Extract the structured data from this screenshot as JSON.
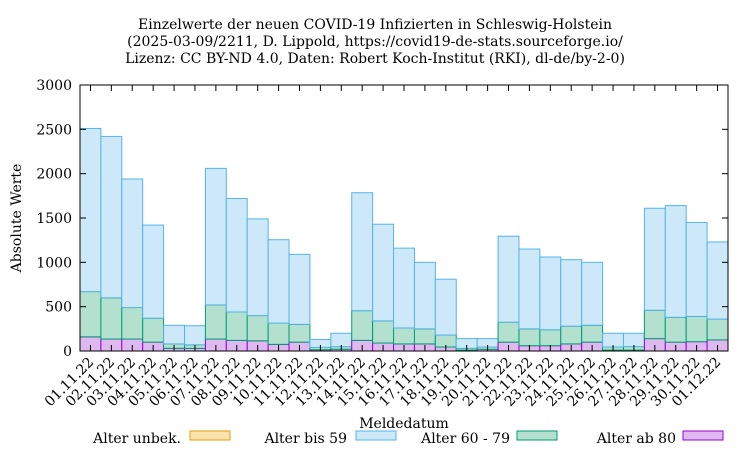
{
  "chart_data": {
    "type": "bar",
    "stacked": true,
    "title": [
      "Einzelwerte der neuen COVID-19 Infizierten in Schleswig-Holstein",
      "(2025-03-09/2211, D. Lippold, https://covid19-de-stats.sourceforge.io/",
      "Lizenz: CC BY-ND 4.0, Daten: Robert Koch-Institut (RKI), dl-de/by-2-0)"
    ],
    "xlabel": "Meldedatum",
    "ylabel": "Absolute Werte",
    "ylim": [
      0,
      3000
    ],
    "yticks": [
      0,
      500,
      1000,
      1500,
      2000,
      2500,
      3000
    ],
    "grid": false,
    "legend_position": "bottom",
    "categories": [
      "01.11.22",
      "02.11.22",
      "03.11.22",
      "04.11.22",
      "05.11.22",
      "06.11.22",
      "07.11.22",
      "08.11.22",
      "09.11.22",
      "10.11.22",
      "11.11.22",
      "12.11.22",
      "13.11.22",
      "14.11.22",
      "15.11.22",
      "16.11.22",
      "17.11.22",
      "18.11.22",
      "19.11.22",
      "20.11.22",
      "21.11.22",
      "22.11.22",
      "23.11.22",
      "24.11.22",
      "25.11.22",
      "26.11.22",
      "27.11.22",
      "28.11.22",
      "29.11.22",
      "30.11.22",
      "01.12.22"
    ],
    "series": [
      {
        "name": "Alter unbek.",
        "fill": "#fbe3b0",
        "stroke": "#e69f00",
        "values": [
          0,
          0,
          0,
          0,
          0,
          0,
          0,
          0,
          0,
          0,
          0,
          0,
          0,
          0,
          0,
          0,
          0,
          0,
          0,
          0,
          0,
          0,
          0,
          0,
          0,
          0,
          0,
          0,
          0,
          0,
          0
        ]
      },
      {
        "name": "Alter bis 59",
        "fill": "#cde8f9",
        "stroke": "#56b4e9",
        "values": [
          1840,
          1820,
          1450,
          1050,
          210,
          215,
          1540,
          1280,
          1090,
          940,
          790,
          90,
          150,
          1330,
          1090,
          900,
          750,
          630,
          110,
          95,
          970,
          900,
          820,
          750,
          710,
          155,
          150,
          1150,
          1260,
          1060,
          870
        ]
      },
      {
        "name": "Alter 60 - 79",
        "fill": "#b3e0cf",
        "stroke": "#009e73",
        "values": [
          510,
          465,
          355,
          270,
          50,
          40,
          385,
          320,
          285,
          240,
          200,
          25,
          30,
          335,
          250,
          180,
          170,
          135,
          20,
          25,
          225,
          190,
          180,
          200,
          190,
          35,
          40,
          320,
          280,
          285,
          235
        ]
      },
      {
        "name": "Alter ab 80",
        "fill": "#e0b8f0",
        "stroke": "#9400d3",
        "values": [
          160,
          135,
          135,
          100,
          30,
          30,
          135,
          120,
          115,
          75,
          100,
          15,
          20,
          120,
          90,
          80,
          80,
          45,
          10,
          20,
          100,
          60,
          60,
          80,
          100,
          10,
          10,
          140,
          100,
          105,
          125
        ]
      }
    ]
  }
}
